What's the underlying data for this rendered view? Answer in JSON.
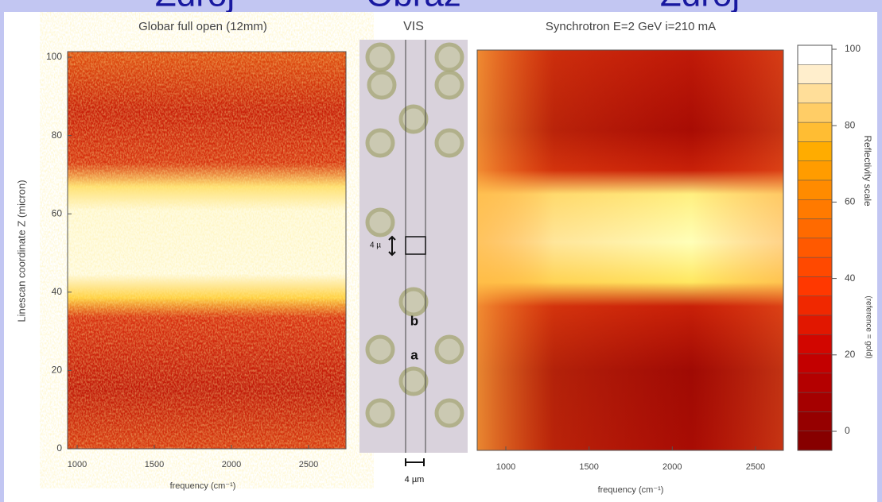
{
  "header": {
    "labels": [
      "Zdroj",
      "Obraz",
      "Zdroj"
    ]
  },
  "panels": [
    {
      "title": "Globar full open (12mm)",
      "y_label": "Linescan coordinate Z (micron)",
      "x_label": "frequency (cm⁻¹)",
      "x_ticks": [
        1000,
        1500,
        2000,
        2500
      ],
      "y_ticks": [
        0,
        20,
        40,
        60,
        80,
        100
      ]
    },
    {
      "title": "Synchrotron E=2 GeV  i=210 mA",
      "x_label": "frequency (cm⁻¹)",
      "x_ticks": [
        1000,
        1500,
        2000,
        2500
      ]
    }
  ],
  "vis": {
    "title": "VIS",
    "scale_label": "4 µ",
    "labels": [
      "b",
      "a"
    ],
    "width_label": "4 µm"
  },
  "colorbar": {
    "title": "Reflectivity scale",
    "subtitle": "(reference = gold)",
    "ticks": [
      100,
      80,
      60,
      40,
      20,
      0
    ]
  }
}
